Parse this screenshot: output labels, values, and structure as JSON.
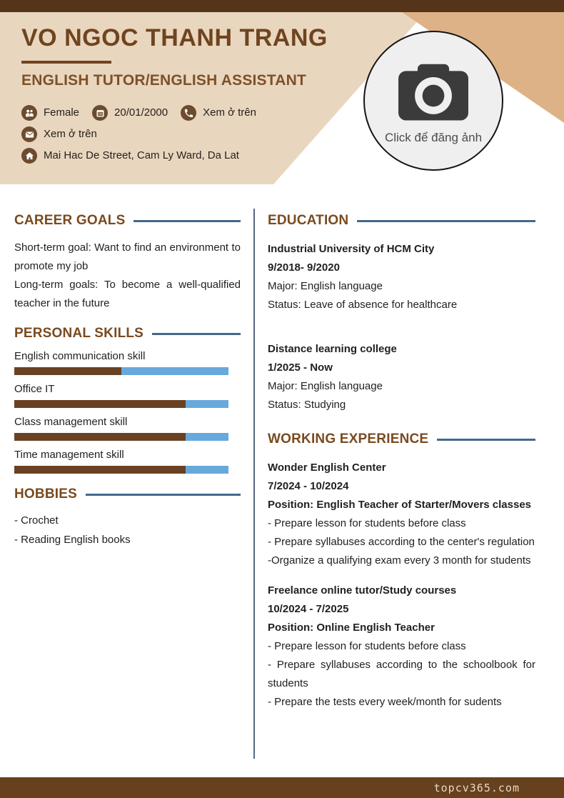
{
  "colors": {
    "topbar_brown": "#553419",
    "header_beige": "#e9d6be",
    "accent_tan": "#ddb287",
    "name_brown": "#6f4420",
    "section_brown": "#7a4a1f",
    "rule_blue": "#44688c",
    "icon_circle_brown": "#6d4b2e",
    "skill_bar_brown": "#6a4223",
    "skill_bar_blue": "#68a9db",
    "footer_brown": "#67401d"
  },
  "header": {
    "name": "VO NGOC THANH TRANG",
    "title": "ENGLISH TUTOR/ENGLISH ASSISTANT",
    "photo": {
      "icon": "camera-icon",
      "caption": "Click để đăng ảnh"
    },
    "contacts": [
      {
        "icon": "gender-icon",
        "text": "Female"
      },
      {
        "icon": "calendar-icon",
        "text": "20/01/2000"
      },
      {
        "icon": "phone-icon",
        "text": "Xem ở trên"
      },
      {
        "icon": "email-icon",
        "text": "Xem ở trên"
      },
      {
        "icon": "home-icon",
        "text": "Mai Hac De Street, Cam Ly Ward, Da Lat"
      }
    ]
  },
  "left": {
    "career_goals": {
      "heading": "CAREER GOALS",
      "lines": [
        "Short-term goal: Want to find an environment to promote my job",
        "Long-term goals: To become a well-qualified teacher in the future"
      ]
    },
    "personal_skills": {
      "heading": "PERSONAL SKILLS",
      "skills": [
        {
          "label": "English communication skill",
          "percent": 50
        },
        {
          "label": "Office IT",
          "percent": 80
        },
        {
          "label": "Class management skill",
          "percent": 80
        },
        {
          "label": "Time management skill",
          "percent": 80
        }
      ]
    },
    "hobbies": {
      "heading": "HOBBIES",
      "items": [
        "- Crochet",
        "- Reading English books"
      ]
    }
  },
  "right": {
    "education": {
      "heading": "EDUCATION",
      "entries": [
        {
          "school": "Industrial University of HCM City",
          "period": "9/2018- 9/2020",
          "major": "Major: English language",
          "status": "Status: Leave of absence for healthcare"
        },
        {
          "school": "Distance learning college",
          "period": "1/2025 - Now",
          "major": "Major: English language",
          "status": "Status: Studying"
        }
      ]
    },
    "experience": {
      "heading": "WORKING EXPERIENCE",
      "entries": [
        {
          "company": "Wonder English Center",
          "period": "7/2024 - 10/2024",
          "position": "Position: English Teacher of Starter/Movers classes",
          "bullets": [
            "- Prepare lesson for students before class",
            "- Prepare syllabuses according to the center's regulation",
            "-Organize a qualifying exam every 3 month for students"
          ]
        },
        {
          "company": "Freelance online tutor/Study courses",
          "period": "10/2024 - 7/2025",
          "position": "Position: Online English Teacher",
          "bullets": [
            "- Prepare lesson for students before class",
            "- Prepare syllabuses according to the schoolbook for students",
            "- Prepare the tests every week/month for sudents"
          ]
        }
      ]
    }
  },
  "footer": {
    "brand": "topcv365.com"
  }
}
